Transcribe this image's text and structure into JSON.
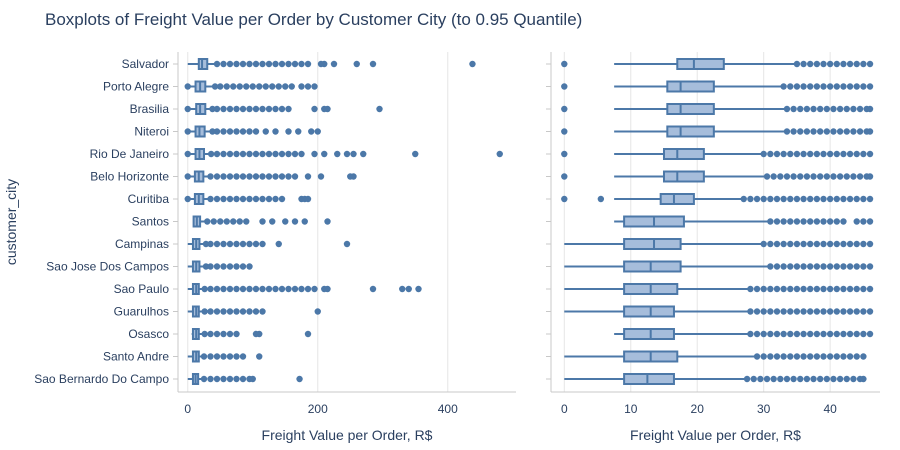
{
  "chart_data": {
    "type": "boxplot",
    "title": "Boxplots of Freight Value per Order by Customer City (to 0.95 Quantile)",
    "ylabel": "customer_city",
    "color": "#4c78a8",
    "box_fill": "#a6bddb",
    "categories": [
      "Salvador",
      "Porto Alegre",
      "Brasilia",
      "Niteroi",
      "Rio De Janeiro",
      "Belo Horizonte",
      "Curitiba",
      "Santos",
      "Campinas",
      "Sao Jose Dos Campos",
      "Sao Paulo",
      "Guarulhos",
      "Osasco",
      "Santo Andre",
      "Sao Bernardo Do Campo"
    ],
    "panels": [
      {
        "name": "full",
        "xlabel": "Freight Value per Order, R$",
        "xlim": [
          -15,
          505
        ],
        "xticks": [
          0,
          200,
          400
        ],
        "boxes": [
          {
            "min": 0,
            "q1": 17,
            "median": 22,
            "q3": 30,
            "max": 45,
            "outliers": [
              45,
              55,
              65,
              75,
              85,
              95,
              105,
              115,
              125,
              135,
              145,
              155,
              165,
              175,
              185,
              205,
              210,
              225,
              260,
              285,
              438
            ]
          },
          {
            "min": 0,
            "q1": 12,
            "median": 19,
            "q3": 27,
            "max": 42,
            "outliers": [
              0,
              42,
              50,
              60,
              70,
              80,
              90,
              100,
              110,
              120,
              130,
              140,
              150,
              160,
              175,
              185,
              195
            ]
          },
          {
            "min": 0,
            "q1": 13,
            "median": 19,
            "q3": 27,
            "max": 38,
            "outliers": [
              0,
              38,
              45,
              55,
              65,
              75,
              85,
              95,
              105,
              115,
              125,
              135,
              145,
              155,
              195,
              210,
              215,
              295
            ]
          },
          {
            "min": 0,
            "q1": 12,
            "median": 18,
            "q3": 26,
            "max": 38,
            "outliers": [
              0,
              38,
              45,
              55,
              65,
              75,
              85,
              95,
              105,
              120,
              135,
              155,
              170,
              190,
              200
            ]
          },
          {
            "min": 0,
            "q1": 12,
            "median": 18,
            "q3": 25,
            "max": 36,
            "outliers": [
              0,
              36,
              45,
              55,
              65,
              75,
              85,
              95,
              105,
              115,
              125,
              135,
              145,
              155,
              165,
              175,
              195,
              210,
              230,
              245,
              255,
              270,
              350,
              480
            ]
          },
          {
            "min": 0,
            "q1": 11,
            "median": 17,
            "q3": 24,
            "max": 35,
            "outliers": [
              0,
              35,
              45,
              55,
              65,
              75,
              85,
              95,
              105,
              115,
              125,
              135,
              145,
              155,
              165,
              185,
              205,
              250,
              255
            ]
          },
          {
            "min": 0,
            "q1": 11,
            "median": 17,
            "q3": 24,
            "max": 35,
            "outliers": [
              0,
              35,
              45,
              55,
              65,
              75,
              85,
              95,
              105,
              115,
              125,
              135,
              145,
              175,
              180,
              185
            ]
          },
          {
            "min": 8,
            "q1": 9,
            "median": 14,
            "q3": 19,
            "max": 27,
            "outliers": [
              30,
              40,
              50,
              60,
              70,
              80,
              90,
              115,
              130,
              150,
              165,
              180,
              215
            ]
          },
          {
            "min": 0,
            "q1": 8,
            "median": 13,
            "q3": 18,
            "max": 28,
            "outliers": [
              28,
              35,
              45,
              55,
              65,
              75,
              85,
              95,
              105,
              115,
              140,
              245
            ]
          },
          {
            "min": 0,
            "q1": 8,
            "median": 13,
            "q3": 18,
            "max": 28,
            "outliers": [
              28,
              35,
              45,
              55,
              65,
              75,
              85,
              95
            ]
          },
          {
            "min": 0,
            "q1": 8,
            "median": 13,
            "q3": 17,
            "max": 26,
            "outliers": [
              26,
              35,
              45,
              55,
              65,
              75,
              85,
              95,
              105,
              115,
              125,
              135,
              145,
              155,
              165,
              175,
              185,
              195,
              210,
              215,
              285,
              330,
              340,
              355
            ]
          },
          {
            "min": 0,
            "q1": 8,
            "median": 13,
            "q3": 17,
            "max": 26,
            "outliers": [
              26,
              35,
              45,
              55,
              65,
              75,
              85,
              95,
              105,
              115,
              200
            ]
          },
          {
            "min": 6,
            "q1": 8,
            "median": 13,
            "q3": 17,
            "max": 26,
            "outliers": [
              26,
              35,
              45,
              55,
              65,
              75,
              105,
              110,
              185
            ]
          },
          {
            "min": 0,
            "q1": 8,
            "median": 13,
            "q3": 17,
            "max": 25,
            "outliers": [
              25,
              35,
              45,
              55,
              65,
              75,
              85,
              110
            ]
          },
          {
            "min": 0,
            "q1": 8,
            "median": 12,
            "q3": 16,
            "max": 25,
            "outliers": [
              25,
              35,
              45,
              55,
              65,
              75,
              85,
              95,
              100,
              172
            ]
          }
        ]
      },
      {
        "name": "to_quantile",
        "xlabel": "Freight Value per Order, R$",
        "xlim": [
          -2,
          47.5
        ],
        "xticks": [
          0,
          10,
          20,
          30,
          40
        ],
        "boxes": [
          {
            "min": 7.5,
            "q1": 17,
            "median": 19.5,
            "q3": 24,
            "max": 35,
            "outliers": [
              0,
              35,
              36,
              37,
              38,
              39,
              40,
              41,
              42,
              43,
              44,
              45,
              46
            ]
          },
          {
            "min": 7.5,
            "q1": 15.5,
            "median": 17.5,
            "q3": 22.5,
            "max": 33,
            "outliers": [
              0,
              33,
              34,
              35,
              36,
              37,
              38,
              39,
              40,
              41,
              42,
              43,
              44,
              45,
              46
            ]
          },
          {
            "min": 7.5,
            "q1": 15.5,
            "median": 17.5,
            "q3": 22.5,
            "max": 33.5,
            "outliers": [
              0,
              33.5,
              34.5,
              35.5,
              36.5,
              37.5,
              38.5,
              39.5,
              40.5,
              41.5,
              42.5,
              43.5,
              44.5,
              45.5,
              46
            ]
          },
          {
            "min": 7.5,
            "q1": 15.5,
            "median": 17.5,
            "q3": 22.5,
            "max": 33.5,
            "outliers": [
              0,
              33.5,
              34.5,
              35.5,
              36.5,
              37.5,
              38.5,
              39.5,
              40.5,
              41.5,
              42.5,
              43.5,
              44.5,
              45.5,
              46
            ]
          },
          {
            "min": 7.5,
            "q1": 15,
            "median": 17,
            "q3": 21,
            "max": 30,
            "outliers": [
              0,
              30,
              31,
              32,
              33,
              34,
              35,
              36,
              37,
              38,
              39,
              40,
              41,
              42,
              43,
              44,
              45,
              46
            ]
          },
          {
            "min": 7.5,
            "q1": 15,
            "median": 17,
            "q3": 21,
            "max": 30.5,
            "outliers": [
              0,
              30.5,
              31.5,
              32.5,
              33.5,
              34.5,
              35.5,
              36.5,
              37.5,
              38.5,
              39.5,
              40.5,
              41.5,
              42.5,
              43.5,
              44.5,
              45.5,
              46
            ]
          },
          {
            "min": 7.5,
            "q1": 14.5,
            "median": 16.5,
            "q3": 19.5,
            "max": 27,
            "outliers": [
              0,
              5.5,
              27,
              28,
              29,
              30,
              31,
              32,
              33,
              34,
              35,
              36,
              37,
              38,
              39,
              40,
              41,
              42,
              43,
              44,
              45,
              46
            ]
          },
          {
            "min": 7.5,
            "q1": 9,
            "median": 13.5,
            "q3": 18,
            "max": 31,
            "outliers": [
              31,
              32,
              33,
              34,
              35,
              36,
              37,
              38,
              39,
              40,
              41,
              42,
              44,
              45,
              46
            ]
          },
          {
            "min": 0,
            "q1": 9,
            "median": 13.5,
            "q3": 17.5,
            "max": 30,
            "outliers": [
              30,
              31,
              32,
              33,
              34,
              35,
              36,
              37,
              38,
              39,
              40,
              41,
              42,
              43,
              44,
              45,
              46
            ]
          },
          {
            "min": 0,
            "q1": 9,
            "median": 13,
            "q3": 17.5,
            "max": 31,
            "outliers": [
              31,
              32,
              33,
              34,
              35,
              36,
              37,
              38,
              39,
              40,
              41,
              42,
              43,
              44,
              45,
              46
            ]
          },
          {
            "min": 0,
            "q1": 9,
            "median": 13,
            "q3": 17,
            "max": 28,
            "outliers": [
              28,
              29,
              30,
              31,
              32,
              33,
              34,
              35,
              36,
              37,
              38,
              39,
              40,
              41,
              42,
              43,
              44,
              45,
              46
            ]
          },
          {
            "min": 0,
            "q1": 9,
            "median": 13,
            "q3": 16.5,
            "max": 28,
            "outliers": [
              28,
              29,
              30,
              31,
              32,
              33,
              34,
              35,
              36,
              37,
              38,
              39,
              40,
              41,
              42,
              43,
              44,
              45,
              46
            ]
          },
          {
            "min": 7.5,
            "q1": 9,
            "median": 13,
            "q3": 16.5,
            "max": 28,
            "outliers": [
              28,
              29,
              30,
              31,
              32,
              33,
              34,
              35,
              36,
              37,
              38,
              39,
              40,
              41,
              42,
              43,
              44,
              45,
              46
            ]
          },
          {
            "min": 0,
            "q1": 9,
            "median": 13,
            "q3": 17,
            "max": 29,
            "outliers": [
              29,
              30,
              31,
              32,
              33,
              34,
              35,
              36,
              37,
              38,
              39,
              40,
              41,
              42,
              43,
              44,
              45
            ]
          },
          {
            "min": 0,
            "q1": 9,
            "median": 12.5,
            "q3": 16.5,
            "max": 27.5,
            "outliers": [
              27.5,
              28.5,
              29.5,
              30.5,
              31.5,
              32.5,
              33.5,
              34.5,
              35.5,
              36.5,
              37.5,
              38.5,
              39.5,
              40.5,
              41.5,
              42.5,
              43.5,
              44.5,
              45
            ]
          }
        ]
      }
    ]
  }
}
